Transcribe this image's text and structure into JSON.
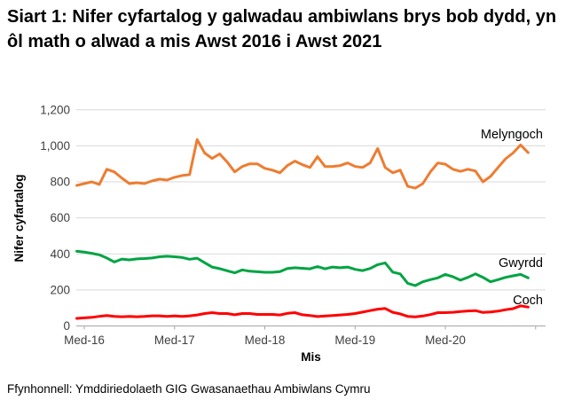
{
  "title": "Siart 1: Nifer cyfartalog y galwadau ambiwlans brys bob dydd, yn ôl math o alwad a mis Awst 2016 i Awst 2021",
  "source": "Ffynhonnell: Ymddiriedolaeth GIG Gwasanaethau Ambiwlans Cymru",
  "chart_data": {
    "type": "line",
    "title": "Siart 1: Nifer cyfartalog y galwadau ambiwlans brys bob dydd, yn ôl math o alwad a mis Awst 2016 i Awst 2021",
    "xlabel": "Mis",
    "ylabel": "Nifer cyfartalog",
    "ylim": [
      0,
      1200
    ],
    "yticks": [
      0,
      200,
      400,
      600,
      800,
      1000,
      1200
    ],
    "y_tick_labels": [
      "0",
      "200",
      "400",
      "600",
      "800",
      "1,000",
      "1,200"
    ],
    "xtick_labels": [
      "Med-16",
      "Med-17",
      "Med-18",
      "Med-19",
      "Med-20"
    ],
    "x_start": "Awst 2016",
    "x_end": "Awst 2021",
    "interval": "monthly",
    "n_points": 61,
    "grid": "horizontal",
    "legend_position": "inline-right",
    "colors": {
      "grid": "#D9D9D9",
      "axis": "#A6A6A6",
      "tick_text": "#404040",
      "label_text": "#000000"
    },
    "series": [
      {
        "name": "Melyngoch",
        "color": "#ED7D31",
        "values": [
          780,
          790,
          800,
          785,
          870,
          855,
          820,
          790,
          795,
          790,
          805,
          815,
          810,
          825,
          835,
          840,
          1035,
          960,
          930,
          955,
          910,
          855,
          885,
          900,
          900,
          875,
          865,
          850,
          890,
          915,
          895,
          880,
          940,
          885,
          885,
          890,
          905,
          885,
          880,
          905,
          985,
          880,
          850,
          865,
          775,
          765,
          790,
          855,
          905,
          898,
          870,
          858,
          870,
          860,
          800,
          830,
          880,
          928,
          960,
          1005,
          962
        ]
      },
      {
        "name": "Gwyrdd",
        "color": "#00A443",
        "values": [
          415,
          410,
          403,
          395,
          377,
          355,
          371,
          367,
          372,
          374,
          377,
          384,
          387,
          384,
          380,
          370,
          376,
          351,
          327,
          318,
          306,
          295,
          311,
          304,
          301,
          298,
          298,
          302,
          319,
          323,
          320,
          317,
          330,
          317,
          327,
          323,
          327,
          314,
          307,
          319,
          340,
          350,
          299,
          289,
          237,
          224,
          245,
          257,
          267,
          286,
          273,
          254,
          270,
          289,
          270,
          245,
          257,
          270,
          278,
          286,
          267
        ]
      },
      {
        "name": "Coch",
        "color": "#FF0000",
        "values": [
          42,
          45,
          48,
          53,
          58,
          53,
          51,
          53,
          51,
          53,
          56,
          56,
          53,
          56,
          53,
          56,
          61,
          69,
          74,
          69,
          69,
          62,
          69,
          69,
          64,
          64,
          64,
          61,
          70,
          74,
          62,
          58,
          52,
          55,
          58,
          61,
          64,
          69,
          77,
          85,
          93,
          97,
          76,
          67,
          53,
          50,
          55,
          63,
          74,
          74,
          76,
          80,
          83,
          85,
          75,
          78,
          82,
          90,
          96,
          112,
          105
        ]
      }
    ]
  }
}
